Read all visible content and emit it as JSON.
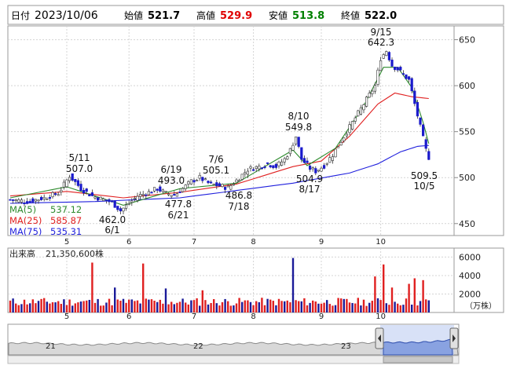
{
  "header": {
    "date_label": "日付",
    "date_value": "2023/10/06",
    "open_label": "始値",
    "open_value": "521.7",
    "high_label": "高値",
    "high_value": "529.9",
    "low_label": "安値",
    "low_value": "513.8",
    "close_label": "終値",
    "close_value": "522.0"
  },
  "colors": {
    "up": "#2e2e8a",
    "down_candle": "#1a1acc",
    "ma5": "#2e8b2e",
    "ma25": "#e02020",
    "ma75": "#2020dd",
    "vol_up": "#e02020",
    "vol_down": "#1a1a99",
    "high_text": "#e00000",
    "low_text": "#008000"
  },
  "legend": [
    {
      "name": "MA(5)",
      "value": "537.12",
      "color": "#2e8b2e"
    },
    {
      "name": "MA(25)",
      "value": "585.87",
      "color": "#e02020"
    },
    {
      "name": "MA(75)",
      "value": "535.31",
      "color": "#2020dd"
    }
  ],
  "volume_label": "出来高",
  "volume_value": "21,350,600株",
  "volume_unit": "（万株）",
  "nav_labels": [
    "21",
    "22",
    "23"
  ],
  "chart_data": {
    "type": "candlestick",
    "price_axis": {
      "ticks": [
        450,
        500,
        550,
        600,
        650
      ],
      "range": [
        437,
        665
      ]
    },
    "volume_axis": {
      "ticks": [
        2000,
        4000,
        6000
      ],
      "unit": "万株"
    },
    "month_ticks": [
      "5",
      "6",
      "7",
      "8",
      "9",
      "10"
    ],
    "annotations": [
      {
        "date": "5/11",
        "value": "507.0",
        "type": "high"
      },
      {
        "date": "6/1",
        "value": "462.0",
        "type": "low"
      },
      {
        "date": "6/19",
        "value": "493.0",
        "type": "high"
      },
      {
        "date": "6/21",
        "value": "477.8",
        "type": "low"
      },
      {
        "date": "7/6",
        "value": "505.1",
        "type": "high"
      },
      {
        "date": "7/18",
        "value": "486.8",
        "type": "low"
      },
      {
        "date": "8/10",
        "value": "549.8",
        "type": "high"
      },
      {
        "date": "8/17",
        "value": "504.9",
        "type": "low"
      },
      {
        "date": "9/15",
        "value": "642.3",
        "type": "high"
      },
      {
        "date": "10/5",
        "value": "509.5",
        "type": "low"
      }
    ],
    "ohlc_anchors": [
      {
        "i": 0,
        "c": 476
      },
      {
        "i": 6,
        "c": 474
      },
      {
        "i": 12,
        "c": 478
      },
      {
        "i": 17,
        "c": 483
      },
      {
        "i": 21,
        "c": 502
      },
      {
        "i": 25,
        "c": 488
      },
      {
        "i": 29,
        "c": 480
      },
      {
        "i": 33,
        "c": 476
      },
      {
        "i": 36,
        "c": 473
      },
      {
        "i": 39,
        "c": 464
      },
      {
        "i": 42,
        "c": 472
      },
      {
        "i": 45,
        "c": 480
      },
      {
        "i": 49,
        "c": 484
      },
      {
        "i": 52,
        "c": 488
      },
      {
        "i": 55,
        "c": 483
      },
      {
        "i": 58,
        "c": 481
      },
      {
        "i": 61,
        "c": 488
      },
      {
        "i": 64,
        "c": 496
      },
      {
        "i": 67,
        "c": 500
      },
      {
        "i": 70,
        "c": 494
      },
      {
        "i": 74,
        "c": 491
      },
      {
        "i": 77,
        "c": 489
      },
      {
        "i": 80,
        "c": 497
      },
      {
        "i": 84,
        "c": 509
      },
      {
        "i": 88,
        "c": 512
      },
      {
        "i": 91,
        "c": 515
      },
      {
        "i": 94,
        "c": 512
      },
      {
        "i": 97,
        "c": 520
      },
      {
        "i": 99,
        "c": 530
      },
      {
        "i": 101,
        "c": 545
      },
      {
        "i": 103,
        "c": 520
      },
      {
        "i": 106,
        "c": 510
      },
      {
        "i": 108,
        "c": 507
      },
      {
        "i": 111,
        "c": 513
      },
      {
        "i": 114,
        "c": 525
      },
      {
        "i": 117,
        "c": 540
      },
      {
        "i": 120,
        "c": 555
      },
      {
        "i": 123,
        "c": 570
      },
      {
        "i": 126,
        "c": 585
      },
      {
        "i": 129,
        "c": 600
      },
      {
        "i": 131,
        "c": 630
      },
      {
        "i": 133,
        "c": 638
      },
      {
        "i": 135,
        "c": 622
      },
      {
        "i": 137,
        "c": 618
      },
      {
        "i": 139,
        "c": 612
      },
      {
        "i": 141,
        "c": 606
      },
      {
        "i": 143,
        "c": 580
      },
      {
        "i": 145,
        "c": 555
      },
      {
        "i": 147,
        "c": 530
      },
      {
        "i": 148,
        "c": 522
      }
    ],
    "ma5_anchors": [
      [
        0,
        478
      ],
      [
        20,
        490
      ],
      [
        40,
        470
      ],
      [
        60,
        488
      ],
      [
        80,
        494
      ],
      [
        100,
        530
      ],
      [
        105,
        513
      ],
      [
        115,
        532
      ],
      [
        125,
        578
      ],
      [
        132,
        620
      ],
      [
        137,
        620
      ],
      [
        142,
        598
      ],
      [
        146,
        560
      ],
      [
        148,
        537
      ]
    ],
    "ma25_anchors": [
      [
        0,
        480
      ],
      [
        20,
        485
      ],
      [
        40,
        478
      ],
      [
        60,
        484
      ],
      [
        80,
        493
      ],
      [
        100,
        512
      ],
      [
        110,
        518
      ],
      [
        120,
        545
      ],
      [
        130,
        580
      ],
      [
        136,
        592
      ],
      [
        142,
        588
      ],
      [
        148,
        586
      ]
    ],
    "ma75_anchors": [
      [
        0,
        472
      ],
      [
        30,
        474
      ],
      [
        60,
        478
      ],
      [
        80,
        486
      ],
      [
        100,
        494
      ],
      [
        120,
        505
      ],
      [
        130,
        515
      ],
      [
        138,
        528
      ],
      [
        144,
        534
      ],
      [
        148,
        535
      ]
    ],
    "volume_spikes": [
      {
        "i": 29,
        "v": 5400
      },
      {
        "i": 37,
        "v": 2700
      },
      {
        "i": 47,
        "v": 5300
      },
      {
        "i": 55,
        "v": 2600
      },
      {
        "i": 68,
        "v": 2400
      },
      {
        "i": 100,
        "v": 5900
      },
      {
        "i": 129,
        "v": 3900
      },
      {
        "i": 132,
        "v": 5200
      },
      {
        "i": 135,
        "v": 2700
      },
      {
        "i": 141,
        "v": 3100
      },
      {
        "i": 143,
        "v": 3700
      },
      {
        "i": 146,
        "v": 3500
      }
    ]
  }
}
